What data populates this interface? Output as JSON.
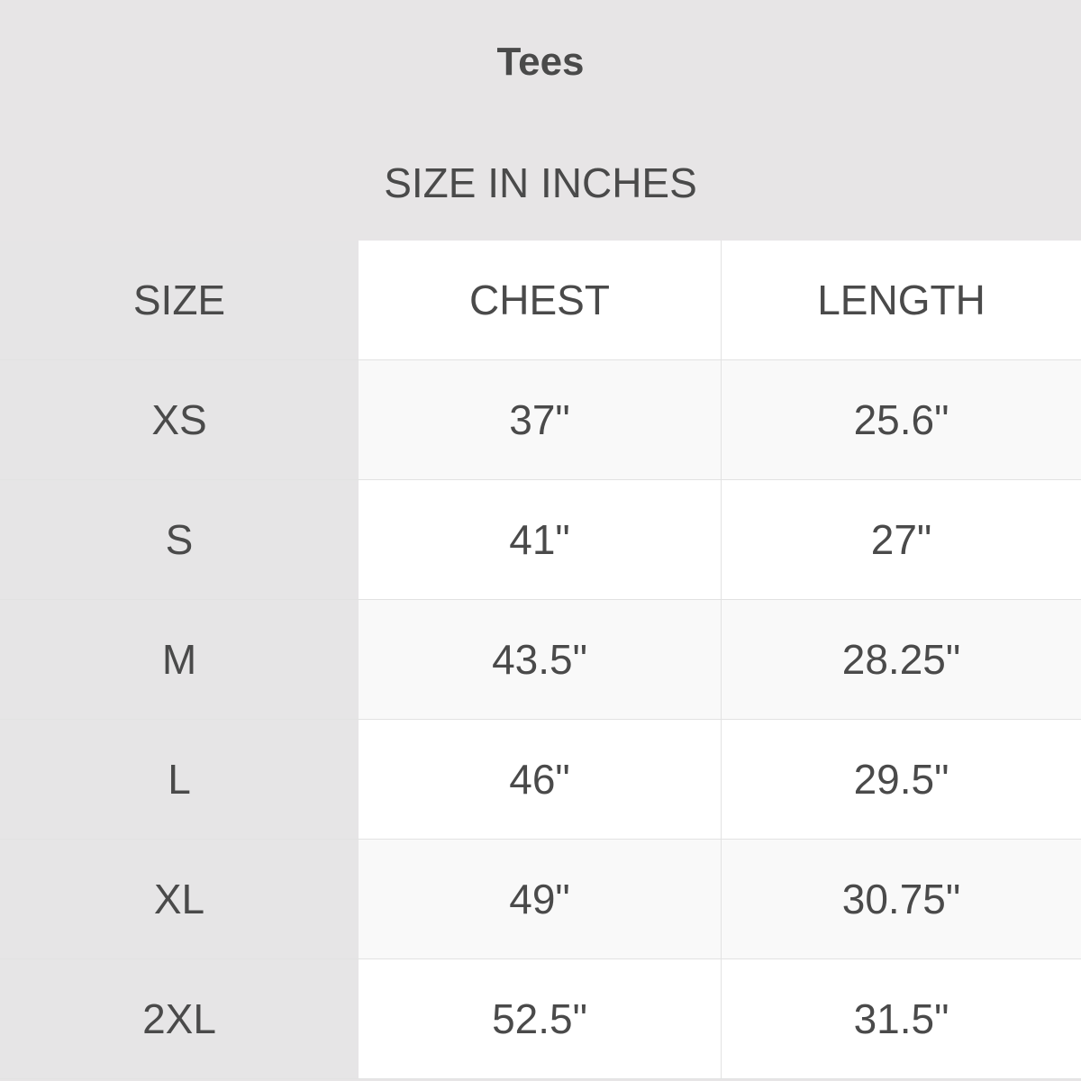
{
  "title": "Tees",
  "subtitle": "SIZE IN INCHES",
  "columns": [
    "SIZE",
    "CHEST",
    "LENGTH"
  ],
  "rows": [
    [
      "XS",
      "37\"",
      "25.6\""
    ],
    [
      "S",
      "41\"",
      "27\""
    ],
    [
      "M",
      "43.5\"",
      "28.25\""
    ],
    [
      "L",
      "46\"",
      "29.5\""
    ],
    [
      "XL",
      "49\"",
      "30.75\""
    ],
    [
      "2XL",
      "52.5\"",
      "31.5\""
    ]
  ]
}
